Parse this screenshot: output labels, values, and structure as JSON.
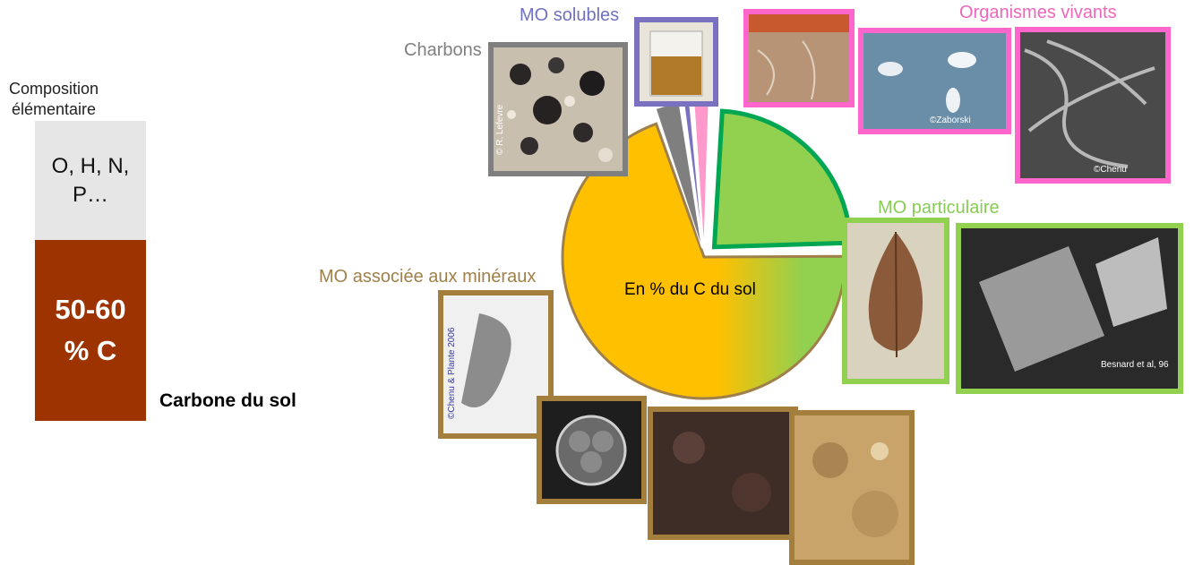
{
  "composition": {
    "title": "Composition élémentaire",
    "other_elements": "O, H, N, P…",
    "carbon_share": "50-60 % C",
    "carbon_label": "Carbone du sol"
  },
  "chart_data": {
    "type": "pie",
    "center_label": "En % du C du sol",
    "categories": [
      "MO associée aux minéraux",
      "Charbons",
      "MO solubles",
      "Organismes vivants",
      "MO particulaire"
    ],
    "values": [
      70,
      3,
      1,
      2,
      24
    ],
    "colors": [
      "#ffc000",
      "#7f7f7f",
      "#7a72c0",
      "#ff99cc",
      "#92d050"
    ],
    "label_colors": [
      "#a0804a",
      "#808080",
      "#7070c0",
      "#ee66bb",
      "#88cc55"
    ]
  },
  "credits": {
    "charbons": "© R. Lefevre",
    "organismes_1": "©Zaborski",
    "organismes_2": "©Chenu",
    "particulaire": "Besnard et al, 96",
    "mineraux": "©Chenu & Plante 2006"
  },
  "colors": {
    "carbon_bar": "#9c3300",
    "other_bar": "#e6e6e6",
    "highlight_outline": "#00a651"
  }
}
